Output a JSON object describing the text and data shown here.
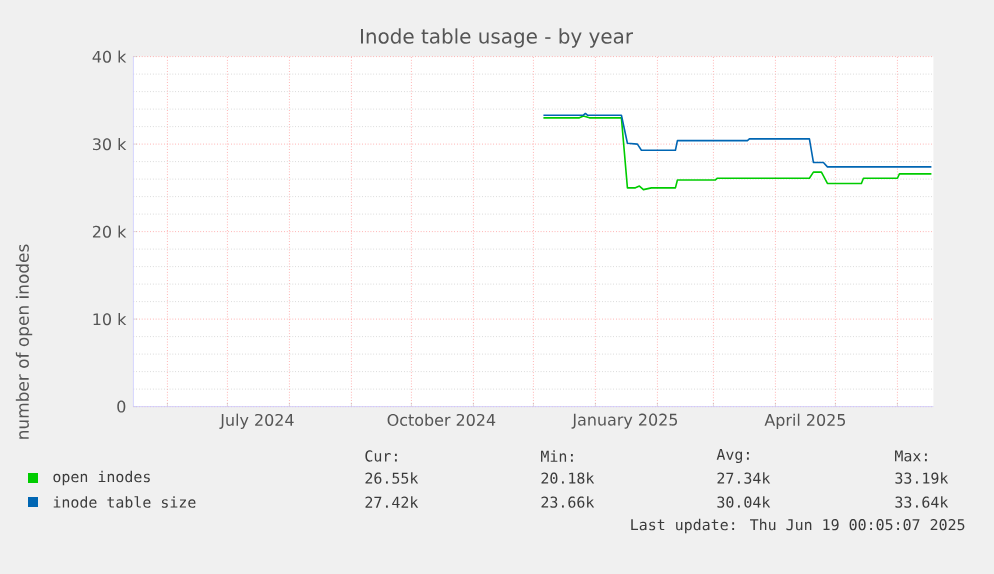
{
  "chart_data": {
    "type": "line",
    "title": "Inode table usage - by year",
    "ylabel": "number of open inodes",
    "xlim": [
      "2024-05-15",
      "2025-06-19"
    ],
    "xticks": [
      {
        "value": "2024-06-01",
        "label": null
      },
      {
        "value": "2024-07-01",
        "label": null
      },
      {
        "value": "2024-07-16",
        "label": "July 2024"
      },
      {
        "value": "2024-08-01",
        "label": null
      },
      {
        "value": "2024-09-01",
        "label": null
      },
      {
        "value": "2024-10-01",
        "label": null
      },
      {
        "value": "2024-10-16",
        "label": "October 2024"
      },
      {
        "value": "2024-11-01",
        "label": null
      },
      {
        "value": "2024-12-01",
        "label": null
      },
      {
        "value": "2025-01-01",
        "label": null
      },
      {
        "value": "2025-01-16",
        "label": "January 2025"
      },
      {
        "value": "2025-02-01",
        "label": null
      },
      {
        "value": "2025-03-01",
        "label": null
      },
      {
        "value": "2025-04-01",
        "label": null
      },
      {
        "value": "2025-04-16",
        "label": "April 2025"
      },
      {
        "value": "2025-05-01",
        "label": null
      },
      {
        "value": "2025-06-01",
        "label": null
      }
    ],
    "ylim": [
      0,
      40000
    ],
    "yticks": [
      0,
      {
        "value": 10000,
        "label": "10 k"
      },
      {
        "value": 20000,
        "label": "20 k"
      },
      {
        "value": 30000,
        "label": "30 k"
      },
      {
        "value": 40000,
        "label": "40 k"
      }
    ],
    "grid": true,
    "legend": "bottom left",
    "marker": "none",
    "line_style": "solid",
    "series": [
      {
        "name": "open inodes",
        "color": "#00cc00",
        "x": [
          "2024-12-06",
          "2024-12-24",
          "2024-12-26",
          "2024-12-29",
          "2025-01-14",
          "2025-01-17",
          "2025-01-21",
          "2025-01-23",
          "2025-01-25",
          "2025-01-29",
          "2025-02-10",
          "2025-02-11",
          "2025-03-02",
          "2025-03-03",
          "2025-04-18",
          "2025-04-20",
          "2025-04-24",
          "2025-04-27",
          "2025-05-14",
          "2025-05-15",
          "2025-06-01",
          "2025-06-02",
          "2025-06-18"
        ],
        "values": [
          33000,
          33000,
          33200,
          33000,
          33000,
          25000,
          25000,
          25200,
          24800,
          25000,
          25000,
          25900,
          25900,
          26100,
          26100,
          26800,
          26800,
          25500,
          25500,
          26100,
          26100,
          26600,
          26600
        ]
      },
      {
        "name": "inode table size",
        "color": "#0066b3",
        "x": [
          "2024-12-06",
          "2024-12-26",
          "2024-12-27",
          "2024-12-28",
          "2025-01-14",
          "2025-01-17",
          "2025-01-22",
          "2025-01-24",
          "2025-02-10",
          "2025-02-11",
          "2025-03-18",
          "2025-03-19",
          "2025-04-18",
          "2025-04-20",
          "2025-04-25",
          "2025-04-27",
          "2025-06-18"
        ],
        "values": [
          33300,
          33300,
          33500,
          33300,
          33300,
          30100,
          30000,
          29300,
          29300,
          30400,
          30400,
          30600,
          30600,
          27900,
          27900,
          27400,
          27400
        ]
      }
    ],
    "annotations": [
      "Cur:",
      "Min:",
      "Avg:",
      "Max:",
      "26.55k",
      "20.18k",
      "27.34k",
      "33.19k",
      "27.42k",
      "23.66k",
      "30.04k",
      "33.64k",
      "Last update: Thu Jun 19 00:05:07 2025"
    ]
  }
}
